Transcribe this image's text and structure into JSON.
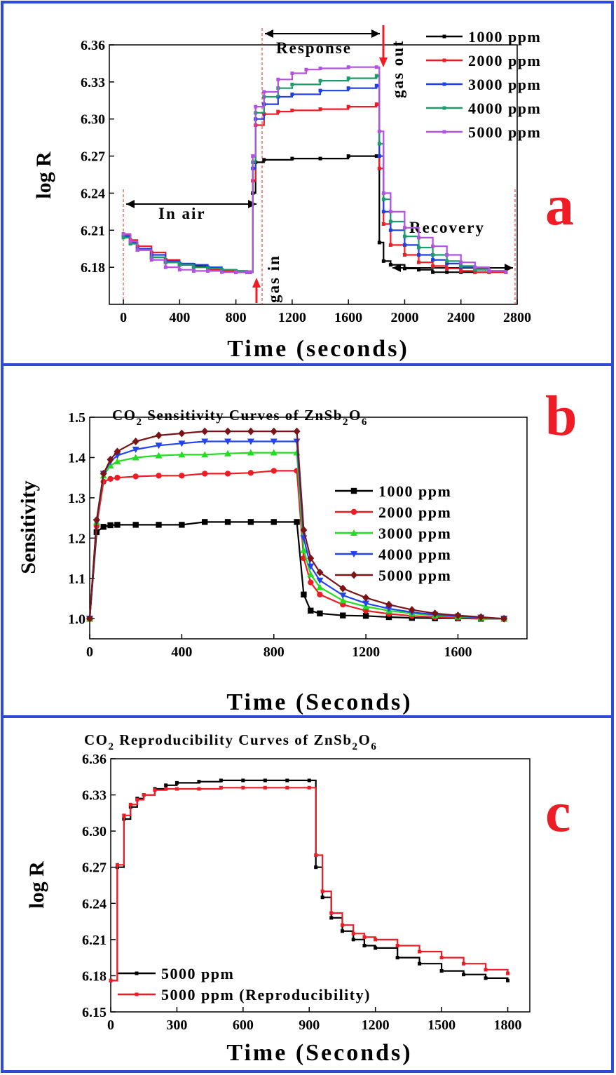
{
  "colors": {
    "frame": "#2e4bd8",
    "marker_red": "#ee1c24",
    "s1000": "#000000",
    "s2000": "#ee1c24",
    "s3000a": "#1f3fe0",
    "s4000a": "#1f9a6a",
    "s5000a": "#b452e0",
    "s3000b": "#22dd22",
    "s4000b": "#2244ee",
    "s5000b": "#7a1416"
  },
  "panels": {
    "a": {
      "letter": "a"
    },
    "b": {
      "letter": "b"
    },
    "c": {
      "letter": "c"
    }
  },
  "chart_data": [
    {
      "type": "line",
      "panel": "a",
      "xlabel": "Time (seconds)",
      "ylabel": "log R",
      "xlim": [
        -100,
        2800
      ],
      "ylim": [
        6.15,
        6.36
      ],
      "xticks": [
        0,
        400,
        800,
        1200,
        1600,
        2000,
        2400,
        2800
      ],
      "yticks": [
        6.18,
        6.21,
        6.24,
        6.27,
        6.3,
        6.33,
        6.36
      ],
      "tick_labels_x": [
        "0",
        "400",
        "800",
        "1200",
        "1600",
        "2000",
        "2400",
        "2800"
      ],
      "tick_labels_y": [
        "6.18",
        "6.21",
        "6.24",
        "6.27",
        "6.30",
        "6.33",
        "6.36"
      ],
      "legend_position": "top-right",
      "series": [
        {
          "name": "1000 ppm",
          "color": "#000000",
          "x": [
            0,
            50,
            100,
            200,
            300,
            400,
            500,
            600,
            700,
            800,
            880,
            900,
            920,
            940,
            1000,
            1200,
            1400,
            1600,
            1800,
            1820,
            1850,
            1900,
            2000,
            2100,
            2200,
            2300,
            2400,
            2500,
            2600,
            2720
          ],
          "y": [
            6.206,
            6.2,
            6.194,
            6.188,
            6.184,
            6.182,
            6.181,
            6.178,
            6.177,
            6.176,
            6.176,
            6.176,
            6.24,
            6.265,
            6.267,
            6.268,
            6.268,
            6.27,
            6.27,
            6.2,
            6.185,
            6.182,
            6.179,
            6.178,
            6.176,
            6.176,
            6.176,
            6.176,
            6.176,
            6.176
          ]
        },
        {
          "name": "2000 ppm",
          "color": "#ee1c24",
          "x": [
            0,
            50,
            100,
            200,
            300,
            400,
            500,
            600,
            700,
            800,
            880,
            900,
            920,
            940,
            1000,
            1100,
            1200,
            1400,
            1600,
            1800,
            1820,
            1850,
            1900,
            2000,
            2100,
            2200,
            2300,
            2400,
            2500,
            2600,
            2720
          ],
          "y": [
            6.206,
            6.202,
            6.197,
            6.192,
            6.186,
            6.182,
            6.18,
            6.178,
            6.177,
            6.176,
            6.176,
            6.176,
            6.25,
            6.295,
            6.304,
            6.306,
            6.307,
            6.308,
            6.31,
            6.312,
            6.26,
            6.215,
            6.198,
            6.19,
            6.184,
            6.181,
            6.179,
            6.177,
            6.176,
            6.176,
            6.176
          ]
        },
        {
          "name": "3000 ppm",
          "color": "#1f3fe0",
          "x": [
            0,
            50,
            100,
            200,
            300,
            400,
            500,
            600,
            700,
            800,
            880,
            900,
            920,
            940,
            1000,
            1100,
            1200,
            1400,
            1600,
            1800,
            1820,
            1850,
            1900,
            2000,
            2100,
            2200,
            2300,
            2400,
            2500,
            2600,
            2720
          ],
          "y": [
            6.205,
            6.2,
            6.195,
            6.19,
            6.185,
            6.183,
            6.182,
            6.18,
            6.178,
            6.177,
            6.176,
            6.176,
            6.26,
            6.3,
            6.312,
            6.318,
            6.32,
            6.323,
            6.325,
            6.327,
            6.27,
            6.225,
            6.21,
            6.198,
            6.19,
            6.186,
            6.183,
            6.18,
            6.178,
            6.177,
            6.176
          ]
        },
        {
          "name": "4000 ppm",
          "color": "#1f9a6a",
          "x": [
            0,
            50,
            100,
            200,
            300,
            400,
            500,
            600,
            700,
            800,
            880,
            900,
            920,
            940,
            1000,
            1100,
            1200,
            1400,
            1600,
            1800,
            1820,
            1850,
            1900,
            2000,
            2100,
            2200,
            2300,
            2400,
            2500,
            2600,
            2720
          ],
          "y": [
            6.204,
            6.199,
            6.194,
            6.188,
            6.184,
            6.182,
            6.18,
            6.179,
            6.178,
            6.177,
            6.176,
            6.176,
            6.265,
            6.305,
            6.318,
            6.325,
            6.328,
            6.331,
            6.333,
            6.335,
            6.28,
            6.235,
            6.217,
            6.205,
            6.196,
            6.19,
            6.185,
            6.181,
            6.178,
            6.177,
            6.176
          ]
        },
        {
          "name": "5000 ppm",
          "color": "#b452e0",
          "x": [
            0,
            50,
            100,
            200,
            300,
            400,
            500,
            600,
            700,
            800,
            880,
            900,
            920,
            940,
            1000,
            1100,
            1200,
            1300,
            1400,
            1600,
            1800,
            1820,
            1850,
            1900,
            2000,
            2100,
            2200,
            2300,
            2400,
            2500,
            2600,
            2720
          ],
          "y": [
            6.207,
            6.201,
            6.194,
            6.186,
            6.18,
            6.178,
            6.177,
            6.177,
            6.176,
            6.176,
            6.176,
            6.176,
            6.27,
            6.31,
            6.322,
            6.332,
            6.337,
            6.34,
            6.341,
            6.342,
            6.342,
            6.29,
            6.24,
            6.225,
            6.212,
            6.204,
            6.197,
            6.19,
            6.184,
            6.18,
            6.177,
            6.176
          ]
        }
      ],
      "annotations": [
        "In air",
        "Response",
        "Recovery",
        "gas in",
        "gas out"
      ]
    },
    {
      "type": "line",
      "panel": "b",
      "title_main": "CO",
      "title_sub1": "2",
      "title_mid": " Sensitivity Curves of ZnSb",
      "title_sub2": "2",
      "title_o": "O",
      "title_sub3": "6",
      "xlabel": "Time (Seconds)",
      "ylabel": "Sensitivity",
      "xlim": [
        0,
        1900
      ],
      "ylim": [
        0.95,
        1.5
      ],
      "xticks": [
        0,
        400,
        800,
        1200,
        1600
      ],
      "yticks": [
        1.0,
        1.1,
        1.2,
        1.3,
        1.4,
        1.5
      ],
      "tick_labels_x": [
        "0",
        "400",
        "800",
        "1200",
        "1600"
      ],
      "tick_labels_y": [
        "1.0",
        "1.1",
        "1.2",
        "1.3",
        "1.4",
        "1.5"
      ],
      "legend_position": "center-right",
      "series": [
        {
          "name": "1000 ppm",
          "color": "#000000",
          "marker": "square",
          "x": [
            0,
            30,
            60,
            90,
            120,
            200,
            300,
            400,
            500,
            600,
            700,
            800,
            900,
            930,
            960,
            1000,
            1100,
            1200,
            1300,
            1400,
            1500,
            1600,
            1700,
            1800
          ],
          "y": [
            1.0,
            1.215,
            1.228,
            1.232,
            1.233,
            1.233,
            1.233,
            1.233,
            1.24,
            1.24,
            1.24,
            1.24,
            1.24,
            1.06,
            1.02,
            1.013,
            1.008,
            1.007,
            1.004,
            1.002,
            1.001,
            1.001,
            1.0,
            1.0
          ]
        },
        {
          "name": "2000 ppm",
          "color": "#ee1c24",
          "marker": "circle",
          "x": [
            0,
            30,
            60,
            90,
            120,
            200,
            300,
            400,
            500,
            600,
            700,
            800,
            900,
            930,
            960,
            1000,
            1100,
            1200,
            1300,
            1400,
            1500,
            1600,
            1700,
            1800
          ],
          "y": [
            1.0,
            1.23,
            1.34,
            1.347,
            1.35,
            1.353,
            1.355,
            1.355,
            1.36,
            1.36,
            1.362,
            1.367,
            1.367,
            1.15,
            1.09,
            1.06,
            1.035,
            1.02,
            1.012,
            1.007,
            1.004,
            1.002,
            1.001,
            1.0
          ]
        },
        {
          "name": "3000 ppm",
          "color": "#22dd22",
          "marker": "triangle-up",
          "x": [
            0,
            30,
            60,
            90,
            120,
            200,
            300,
            400,
            500,
            600,
            700,
            800,
            900,
            930,
            960,
            1000,
            1100,
            1200,
            1300,
            1400,
            1500,
            1600,
            1700,
            1800
          ],
          "y": [
            1.0,
            1.24,
            1.355,
            1.38,
            1.39,
            1.4,
            1.405,
            1.407,
            1.407,
            1.41,
            1.412,
            1.412,
            1.412,
            1.17,
            1.11,
            1.078,
            1.045,
            1.03,
            1.02,
            1.013,
            1.008,
            1.005,
            1.002,
            1.0
          ]
        },
        {
          "name": "4000 ppm",
          "color": "#2244ee",
          "marker": "triangle-down",
          "x": [
            0,
            30,
            60,
            90,
            120,
            200,
            300,
            400,
            500,
            600,
            700,
            800,
            900,
            930,
            960,
            1000,
            1100,
            1200,
            1300,
            1400,
            1500,
            1600,
            1700,
            1800
          ],
          "y": [
            1.0,
            1.24,
            1.36,
            1.39,
            1.405,
            1.42,
            1.43,
            1.435,
            1.44,
            1.44,
            1.44,
            1.44,
            1.44,
            1.2,
            1.13,
            1.095,
            1.058,
            1.038,
            1.025,
            1.016,
            1.01,
            1.006,
            1.003,
            1.0
          ]
        },
        {
          "name": "5000 ppm",
          "color": "#7a1416",
          "marker": "diamond",
          "x": [
            0,
            30,
            60,
            90,
            120,
            200,
            300,
            400,
            500,
            600,
            700,
            800,
            900,
            930,
            960,
            1000,
            1100,
            1200,
            1300,
            1400,
            1500,
            1600,
            1700,
            1800
          ],
          "y": [
            1.0,
            1.245,
            1.36,
            1.395,
            1.415,
            1.44,
            1.455,
            1.46,
            1.465,
            1.465,
            1.465,
            1.465,
            1.465,
            1.22,
            1.15,
            1.115,
            1.075,
            1.052,
            1.035,
            1.022,
            1.013,
            1.008,
            1.004,
            1.0
          ]
        }
      ]
    },
    {
      "type": "line",
      "panel": "c",
      "title_main": "CO",
      "title_sub1": "2",
      "title_mid": " Reproducibility Curves of ZnSb",
      "title_sub2": "2",
      "title_o": "O",
      "title_sub3": "6",
      "xlabel": "Time (Seconds)",
      "ylabel": "log R",
      "xlim": [
        0,
        1900
      ],
      "ylim": [
        6.15,
        6.36
      ],
      "xticks": [
        0,
        300,
        600,
        900,
        1200,
        1500,
        1800
      ],
      "yticks": [
        6.15,
        6.18,
        6.21,
        6.24,
        6.27,
        6.3,
        6.33,
        6.36
      ],
      "tick_labels_x": [
        "0",
        "300",
        "600",
        "900",
        "1200",
        "1500",
        "1800"
      ],
      "tick_labels_y": [
        "6.15",
        "6.18",
        "6.21",
        "6.24",
        "6.27",
        "6.30",
        "6.33",
        "6.36"
      ],
      "legend_position": "bottom-left",
      "series": [
        {
          "name": "5000 ppm",
          "color": "#000000",
          "x": [
            0,
            30,
            60,
            90,
            120,
            150,
            200,
            250,
            300,
            400,
            500,
            600,
            700,
            800,
            900,
            930,
            960,
            1000,
            1050,
            1100,
            1150,
            1200,
            1300,
            1400,
            1500,
            1600,
            1700,
            1800
          ],
          "y": [
            6.176,
            6.27,
            6.31,
            6.32,
            6.327,
            6.33,
            6.335,
            6.338,
            6.34,
            6.341,
            6.342,
            6.342,
            6.342,
            6.342,
            6.342,
            6.27,
            6.245,
            6.228,
            6.217,
            6.21,
            6.205,
            6.203,
            6.195,
            6.19,
            6.184,
            6.181,
            6.178,
            6.176
          ]
        },
        {
          "name": "5000 ppm (Reproducibility)",
          "color": "#ee1c24",
          "x": [
            0,
            30,
            60,
            90,
            120,
            150,
            200,
            250,
            300,
            400,
            500,
            600,
            700,
            800,
            900,
            930,
            960,
            1000,
            1050,
            1100,
            1150,
            1200,
            1300,
            1400,
            1500,
            1600,
            1700,
            1800
          ],
          "y": [
            6.176,
            6.272,
            6.313,
            6.322,
            6.326,
            6.33,
            6.334,
            6.335,
            6.335,
            6.335,
            6.336,
            6.336,
            6.336,
            6.336,
            6.336,
            6.28,
            6.25,
            6.232,
            6.222,
            6.215,
            6.212,
            6.21,
            6.205,
            6.2,
            6.195,
            6.19,
            6.185,
            6.182
          ]
        }
      ]
    }
  ]
}
